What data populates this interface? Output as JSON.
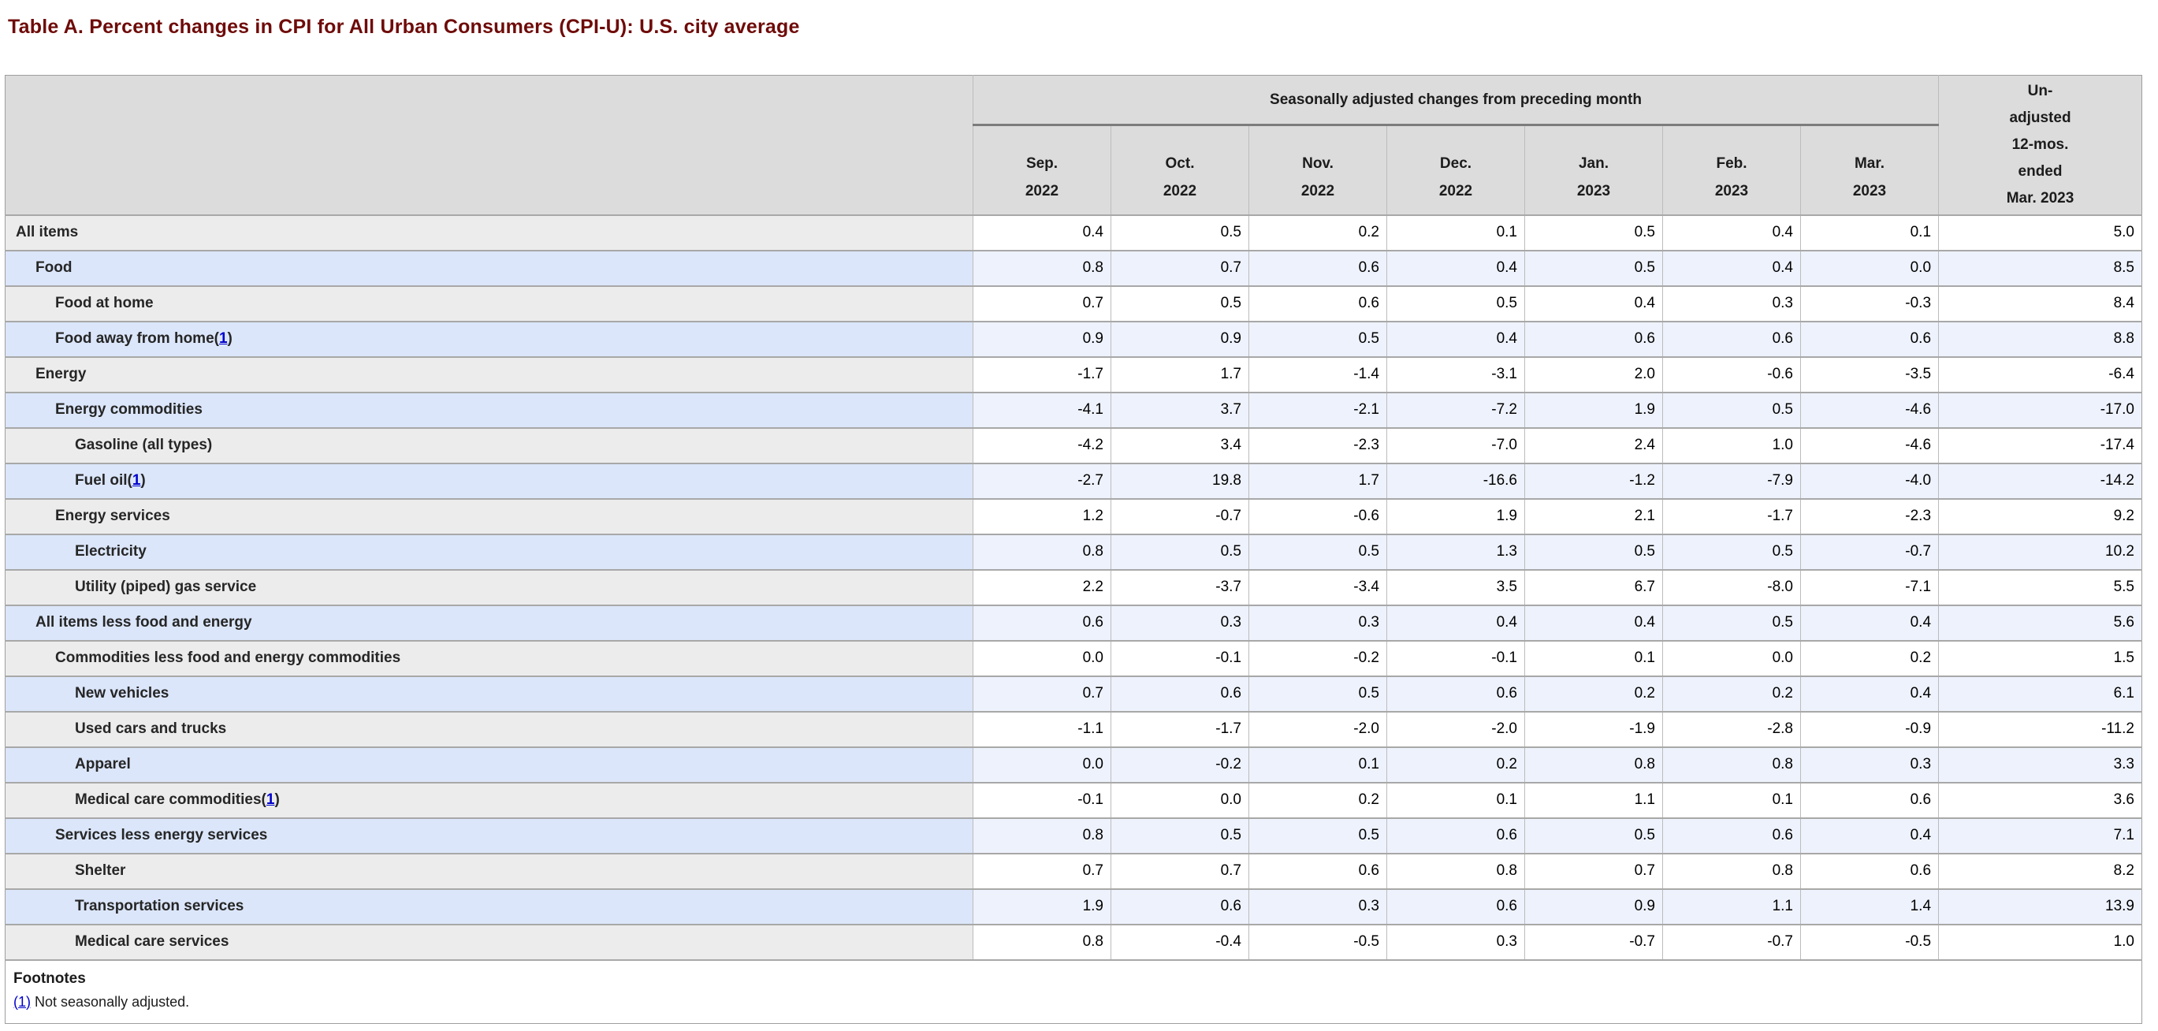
{
  "page": {
    "title": "Table A. Percent changes in CPI for All Urban Consumers (CPI-U): U.S. city average"
  },
  "table": {
    "header": {
      "group_label": "Seasonally adjusted changes from preceding month",
      "months": [
        "Sep.\n2022",
        "Oct.\n2022",
        "Nov.\n2022",
        "Dec.\n2022",
        "Jan.\n2023",
        "Feb.\n2023",
        "Mar.\n2023"
      ],
      "unadjusted_label": "Un-\nadjusted\n12-mos.\nended\nMar. 2023"
    },
    "footnote_wrap": [
      "(",
      ")"
    ],
    "rows": [
      {
        "label": "All items",
        "indent": 0,
        "values": [
          "0.4",
          "0.5",
          "0.2",
          "0.1",
          "0.5",
          "0.4",
          "0.1",
          "5.0"
        ]
      },
      {
        "label": "Food",
        "indent": 1,
        "values": [
          "0.8",
          "0.7",
          "0.6",
          "0.4",
          "0.5",
          "0.4",
          "0.0",
          "8.5"
        ]
      },
      {
        "label": "Food at home",
        "indent": 2,
        "values": [
          "0.7",
          "0.5",
          "0.6",
          "0.5",
          "0.4",
          "0.3",
          "-0.3",
          "8.4"
        ]
      },
      {
        "label": "Food away from home",
        "indent": 2,
        "footnote_ref": "1",
        "values": [
          "0.9",
          "0.9",
          "0.5",
          "0.4",
          "0.6",
          "0.6",
          "0.6",
          "8.8"
        ]
      },
      {
        "label": "Energy",
        "indent": 1,
        "values": [
          "-1.7",
          "1.7",
          "-1.4",
          "-3.1",
          "2.0",
          "-0.6",
          "-3.5",
          "-6.4"
        ]
      },
      {
        "label": "Energy commodities",
        "indent": 2,
        "values": [
          "-4.1",
          "3.7",
          "-2.1",
          "-7.2",
          "1.9",
          "0.5",
          "-4.6",
          "-17.0"
        ]
      },
      {
        "label": "Gasoline (all types)",
        "indent": 3,
        "values": [
          "-4.2",
          "3.4",
          "-2.3",
          "-7.0",
          "2.4",
          "1.0",
          "-4.6",
          "-17.4"
        ]
      },
      {
        "label": "Fuel oil",
        "indent": 3,
        "footnote_ref": "1",
        "values": [
          "-2.7",
          "19.8",
          "1.7",
          "-16.6",
          "-1.2",
          "-7.9",
          "-4.0",
          "-14.2"
        ]
      },
      {
        "label": "Energy services",
        "indent": 2,
        "values": [
          "1.2",
          "-0.7",
          "-0.6",
          "1.9",
          "2.1",
          "-1.7",
          "-2.3",
          "9.2"
        ]
      },
      {
        "label": "Electricity",
        "indent": 3,
        "values": [
          "0.8",
          "0.5",
          "0.5",
          "1.3",
          "0.5",
          "0.5",
          "-0.7",
          "10.2"
        ]
      },
      {
        "label": "Utility (piped) gas service",
        "indent": 3,
        "values": [
          "2.2",
          "-3.7",
          "-3.4",
          "3.5",
          "6.7",
          "-8.0",
          "-7.1",
          "5.5"
        ]
      },
      {
        "label": "All items less food and energy",
        "indent": 1,
        "values": [
          "0.6",
          "0.3",
          "0.3",
          "0.4",
          "0.4",
          "0.5",
          "0.4",
          "5.6"
        ]
      },
      {
        "label": "Commodities less food and energy commodities",
        "indent": 2,
        "values": [
          "0.0",
          "-0.1",
          "-0.2",
          "-0.1",
          "0.1",
          "0.0",
          "0.2",
          "1.5"
        ]
      },
      {
        "label": "New vehicles",
        "indent": 3,
        "values": [
          "0.7",
          "0.6",
          "0.5",
          "0.6",
          "0.2",
          "0.2",
          "0.4",
          "6.1"
        ]
      },
      {
        "label": "Used cars and trucks",
        "indent": 3,
        "values": [
          "-1.1",
          "-1.7",
          "-2.0",
          "-2.0",
          "-1.9",
          "-2.8",
          "-0.9",
          "-11.2"
        ]
      },
      {
        "label": "Apparel",
        "indent": 3,
        "values": [
          "0.0",
          "-0.2",
          "0.1",
          "0.2",
          "0.8",
          "0.8",
          "0.3",
          "3.3"
        ]
      },
      {
        "label": "Medical care commodities",
        "indent": 3,
        "footnote_ref": "1",
        "values": [
          "-0.1",
          "0.0",
          "0.2",
          "0.1",
          "1.1",
          "0.1",
          "0.6",
          "3.6"
        ]
      },
      {
        "label": "Services less energy services",
        "indent": 2,
        "values": [
          "0.8",
          "0.5",
          "0.5",
          "0.6",
          "0.5",
          "0.6",
          "0.4",
          "7.1"
        ]
      },
      {
        "label": "Shelter",
        "indent": 3,
        "values": [
          "0.7",
          "0.7",
          "0.6",
          "0.8",
          "0.7",
          "0.8",
          "0.6",
          "8.2"
        ]
      },
      {
        "label": "Transportation services",
        "indent": 3,
        "values": [
          "1.9",
          "0.6",
          "0.3",
          "0.6",
          "0.9",
          "1.1",
          "1.4",
          "13.9"
        ]
      },
      {
        "label": "Medical care services",
        "indent": 3,
        "values": [
          "0.8",
          "-0.4",
          "-0.5",
          "0.3",
          "-0.7",
          "-0.7",
          "-0.5",
          "1.0"
        ]
      }
    ]
  },
  "footnotes": {
    "heading": "Footnotes",
    "items": [
      {
        "marker": "(1)",
        "text": "Not seasonally adjusted."
      }
    ]
  },
  "colors": {
    "title_maroon": "#6e0b09",
    "header_gray": "#dcdcdc",
    "row_gray_label": "#ececec",
    "row_blue_label": "#dbe6fa",
    "row_blue_data": "#eef2fc",
    "link_blue": "#0000cc",
    "row_border": "#a8a8a8"
  }
}
